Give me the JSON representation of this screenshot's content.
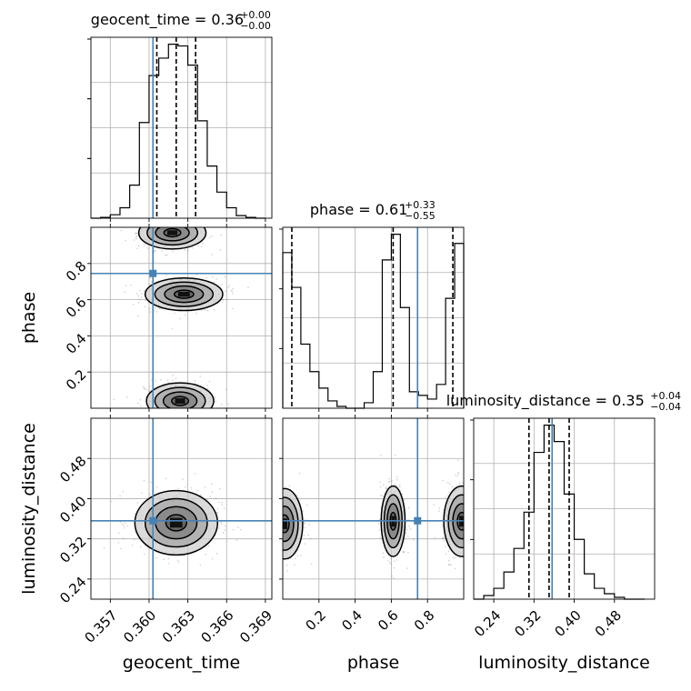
{
  "chart_data": {
    "type": "corner",
    "parameters": [
      "geocent_time",
      "phase",
      "luminosity_distance"
    ],
    "truth": {
      "geocent_time": 0.3603,
      "phase": 0.745,
      "luminosity_distance": 0.356
    },
    "colors": {
      "truth": "#4682b4",
      "hist": "#000000",
      "quantile": "#000000",
      "grid": "#b0b0b0",
      "scatter": "#777777"
    },
    "grid": true,
    "titles": [
      {
        "param": "geocent_time",
        "name": "geocent_time",
        "value": "0.36",
        "plus": "+0.00",
        "minus": "−0.00"
      },
      {
        "param": "phase",
        "name": "phase",
        "value": "0.61",
        "plus": "+0.33",
        "minus": "−0.55"
      },
      {
        "param": "luminosity_distance",
        "name": "luminosity_distance",
        "value": "0.35",
        "plus": "+0.04",
        "minus": "−0.04"
      }
    ],
    "axes": {
      "geocent_time": {
        "label": "geocent_time",
        "range": [
          0.3555,
          0.3695
        ],
        "ticks": [
          0.357,
          0.36,
          0.363,
          0.366,
          0.369
        ],
        "tick_labels": [
          "0.357",
          "0.360",
          "0.363",
          "0.366",
          "0.369"
        ]
      },
      "phase": {
        "label": "phase",
        "range": [
          0.0,
          1.0
        ],
        "ticks": [
          0.2,
          0.4,
          0.6,
          0.8
        ],
        "tick_labels": [
          "0.2",
          "0.4",
          "0.6",
          "0.8"
        ]
      },
      "luminosity_distance": {
        "label": "luminosity_distance",
        "range": [
          0.2,
          0.56
        ],
        "ticks": [
          0.24,
          0.32,
          0.4,
          0.48
        ],
        "tick_labels": [
          "0.24",
          "0.32",
          "0.40",
          "0.48"
        ]
      }
    },
    "histograms": {
      "geocent_time": {
        "bin_edges": [
          0.3555,
          0.35625,
          0.357,
          0.35775,
          0.3585,
          0.35925,
          0.36,
          0.36075,
          0.3615,
          0.36225,
          0.363,
          0.36375,
          0.3645,
          0.36525,
          0.366,
          0.36675,
          0.3675,
          0.36825,
          0.369
        ],
        "counts": [
          0.0,
          0.005,
          0.02,
          0.06,
          0.19,
          0.55,
          0.82,
          0.92,
          1.0,
          0.99,
          0.88,
          0.56,
          0.3,
          0.15,
          0.06,
          0.015,
          0.005,
          0.0
        ],
        "quantiles": [
          0.3606,
          0.3621,
          0.3636
        ]
      },
      "phase": {
        "bin_edges": [
          0.0,
          0.05,
          0.1,
          0.15,
          0.2,
          0.25,
          0.3,
          0.35,
          0.4,
          0.45,
          0.5,
          0.55,
          0.6,
          0.65,
          0.7,
          0.75,
          0.8,
          0.85,
          0.9,
          0.95,
          1.0
        ],
        "counts": [
          0.85,
          0.66,
          0.35,
          0.2,
          0.11,
          0.04,
          0.01,
          0.0,
          0.0,
          0.03,
          0.2,
          0.81,
          0.95,
          0.55,
          0.09,
          0.07,
          0.05,
          0.13,
          0.6,
          0.9
        ],
        "quantiles": [
          0.05,
          0.61,
          0.94
        ]
      },
      "luminosity_distance": {
        "bin_edges": [
          0.2,
          0.22,
          0.24,
          0.26,
          0.28,
          0.3,
          0.32,
          0.34,
          0.36,
          0.38,
          0.4,
          0.42,
          0.44,
          0.46,
          0.48,
          0.5,
          0.52,
          0.54
        ],
        "counts": [
          0.0,
          0.02,
          0.06,
          0.15,
          0.28,
          0.48,
          0.81,
          0.96,
          0.87,
          0.58,
          0.33,
          0.14,
          0.06,
          0.03,
          0.01,
          0.0,
          0.0
        ],
        "quantiles": [
          0.31,
          0.35,
          0.39
        ]
      }
    },
    "density_modes": {
      "phase_vs_geocent_time": [
        {
          "x": 0.3618,
          "y": 0.97,
          "sx": 0.0013,
          "sy": 0.045
        },
        {
          "x": 0.3627,
          "y": 0.63,
          "sx": 0.0015,
          "sy": 0.045
        },
        {
          "x": 0.3624,
          "y": 0.04,
          "sx": 0.0013,
          "sy": 0.05
        }
      ],
      "luminosity_distance_vs_geocent_time": [
        {
          "x": 0.3621,
          "y": 0.352,
          "sx": 0.0016,
          "sy": 0.032
        }
      ],
      "luminosity_distance_vs_phase": [
        {
          "x": 0.01,
          "y": 0.35,
          "sx": 0.05,
          "sy": 0.035
        },
        {
          "x": 0.61,
          "y": 0.355,
          "sx": 0.033,
          "sy": 0.035
        },
        {
          "x": 0.99,
          "y": 0.355,
          "sx": 0.05,
          "sy": 0.035
        }
      ]
    },
    "contour_levels": [
      "0.5σ",
      "1σ",
      "1.5σ",
      "2σ"
    ]
  }
}
